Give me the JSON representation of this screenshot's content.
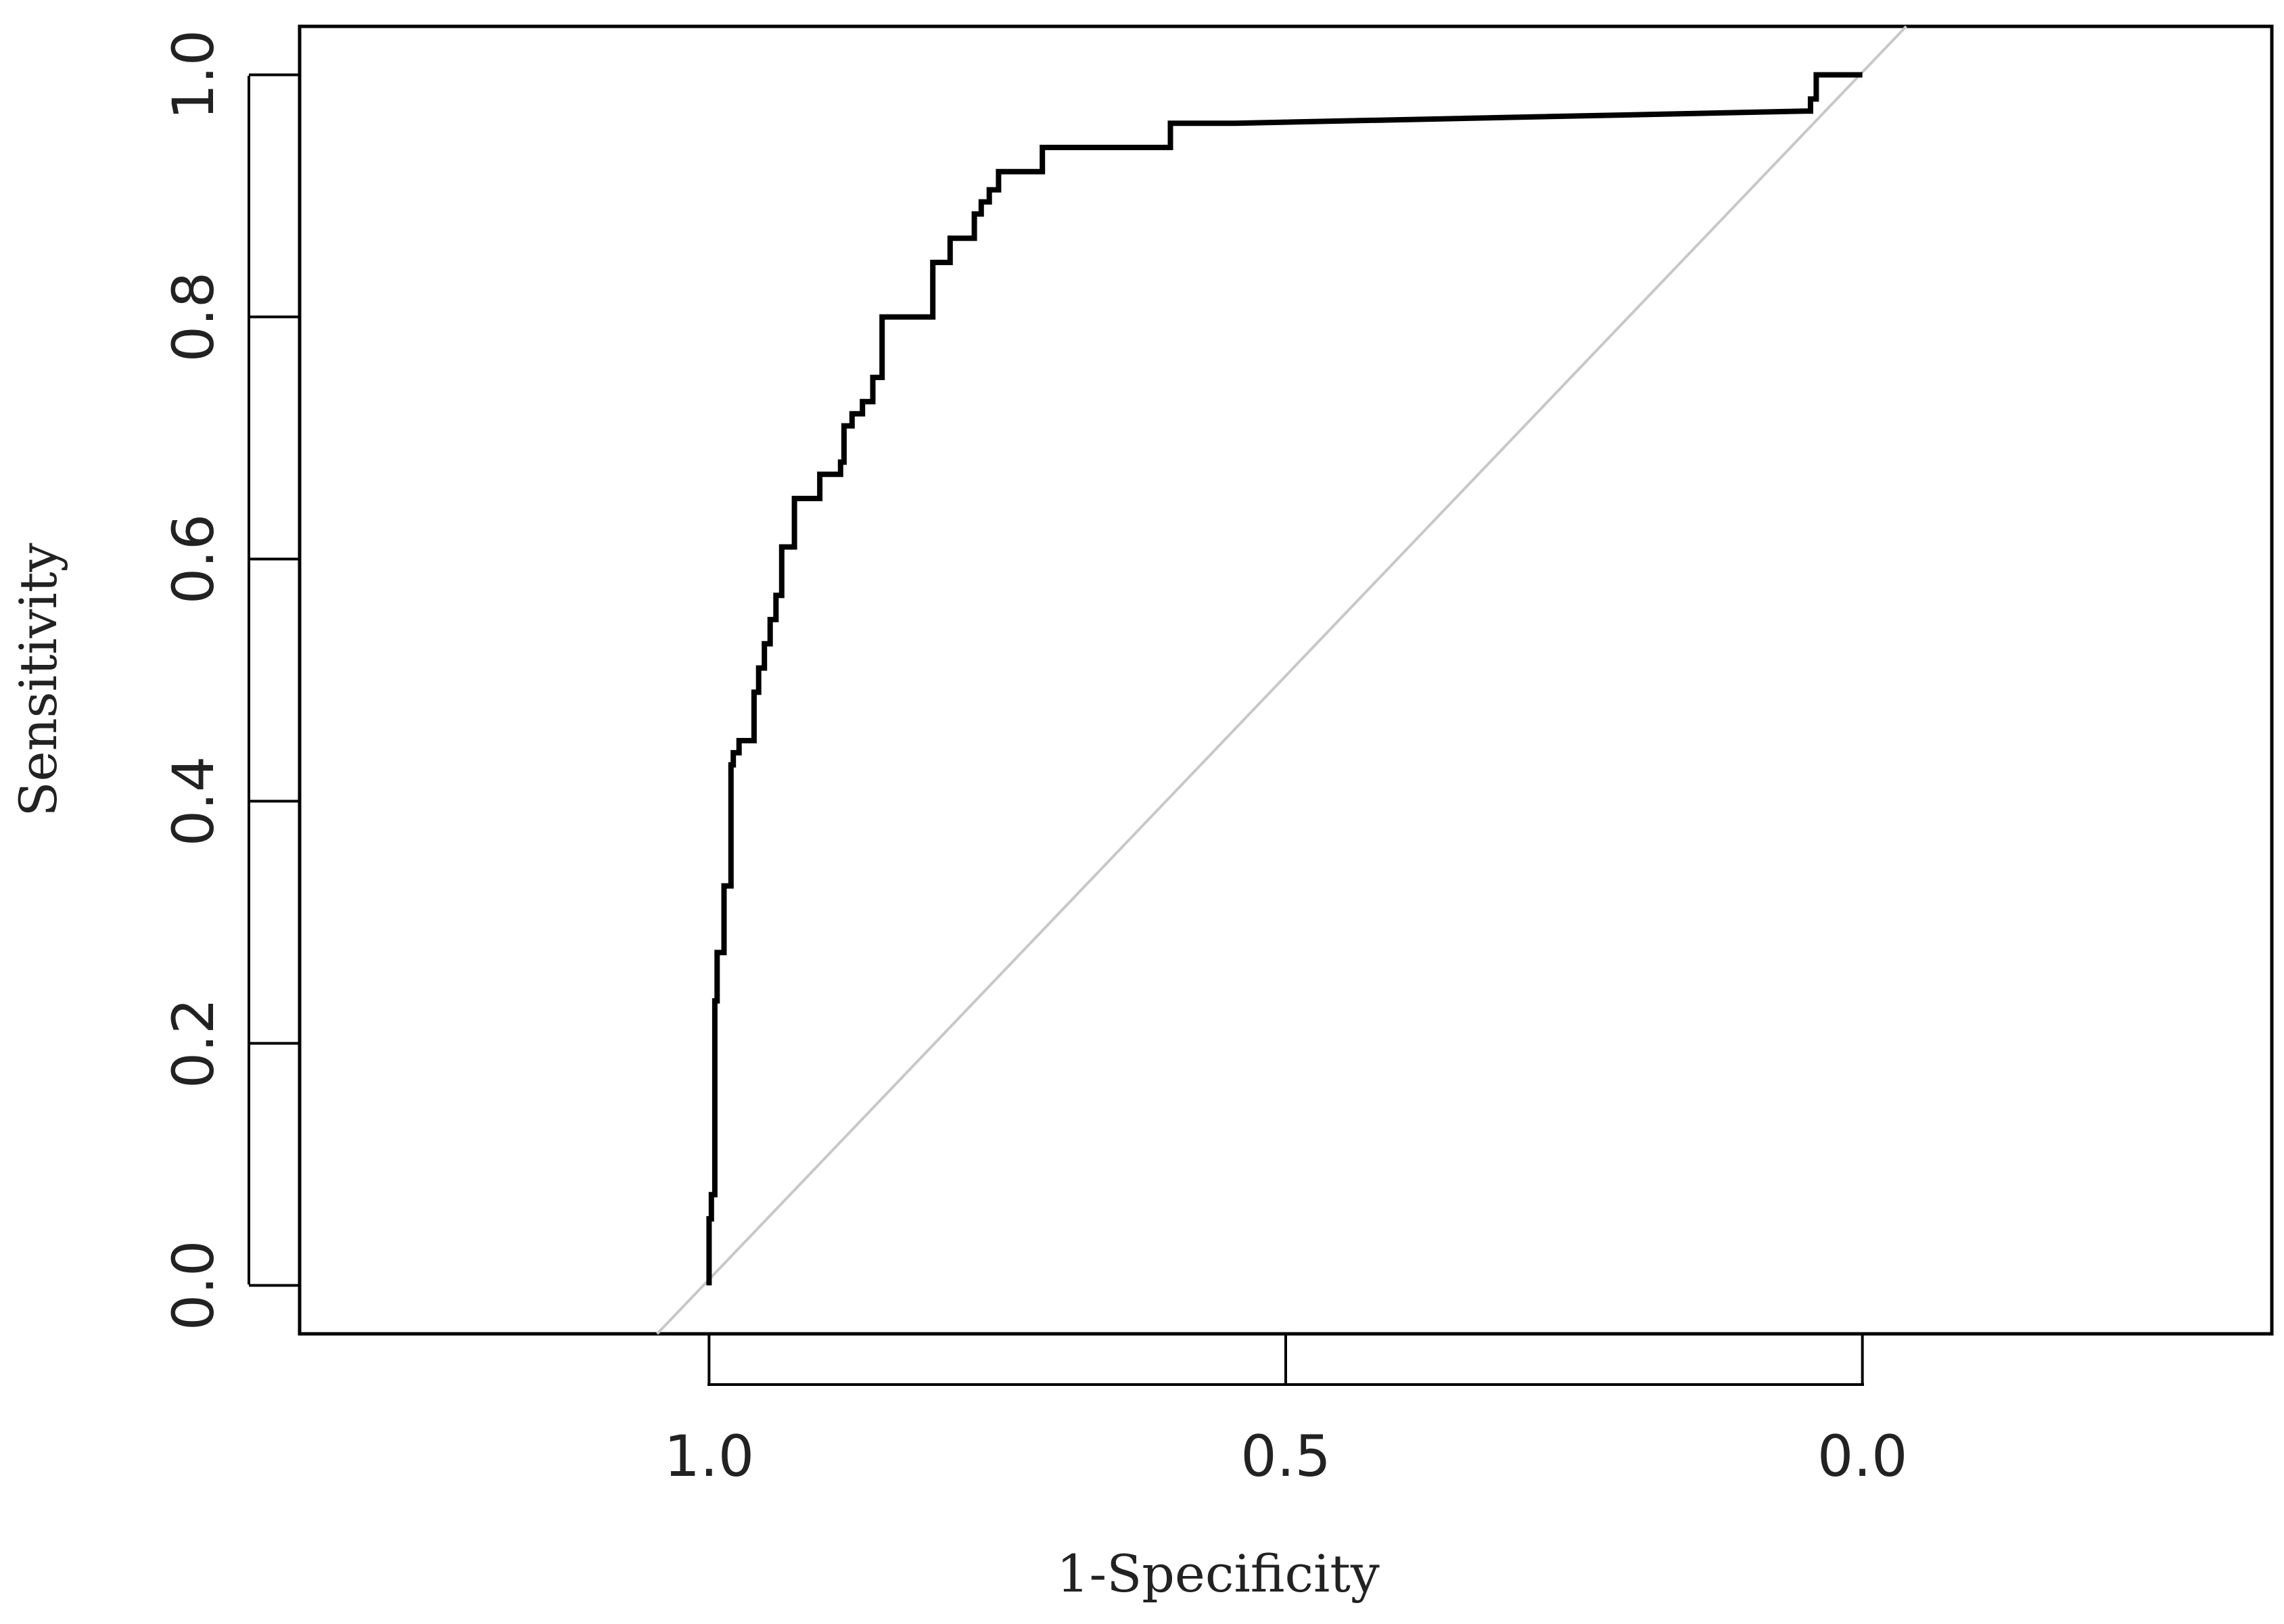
{
  "chart_data": {
    "type": "line",
    "title": "",
    "xlabel": "1-Specificity",
    "ylabel": "Sensitivity",
    "xlim": [
      1.355,
      -0.355
    ],
    "ylim": [
      -0.04,
      1.04
    ],
    "x_reversed": true,
    "grid": false,
    "legend": "none",
    "xticks": [
      {
        "value": 1.0,
        "label": "1.0"
      },
      {
        "value": 0.5,
        "label": "0.5"
      },
      {
        "value": 0.0,
        "label": "0.0"
      }
    ],
    "yticks": [
      {
        "value": 0.0,
        "label": "0.0"
      },
      {
        "value": 0.2,
        "label": "0.2"
      },
      {
        "value": 0.4,
        "label": "0.4"
      },
      {
        "value": 0.6,
        "label": "0.6"
      },
      {
        "value": 0.8,
        "label": "0.8"
      },
      {
        "value": 1.0,
        "label": "1.0"
      }
    ],
    "series": [
      {
        "color": "#000000",
        "x": [
          1.0,
          1.0,
          0.998,
          0.998,
          0.995,
          0.995,
          0.993,
          0.993,
          0.987,
          0.987,
          0.981,
          0.981,
          0.979,
          0.979,
          0.974,
          0.974,
          0.961,
          0.961,
          0.957,
          0.957,
          0.952,
          0.952,
          0.947,
          0.947,
          0.942,
          0.942,
          0.937,
          0.937,
          0.926,
          0.926,
          0.904,
          0.904,
          0.886,
          0.886,
          0.883,
          0.883,
          0.876,
          0.876,
          0.867,
          0.867,
          0.858,
          0.858,
          0.85,
          0.85,
          0.806,
          0.806,
          0.791,
          0.791,
          0.77,
          0.77,
          0.764,
          0.764,
          0.757,
          0.757,
          0.749,
          0.749,
          0.711,
          0.711,
          0.6,
          0.6,
          0.544,
          0.544,
          0.05,
          0.045,
          0.045,
          0.04,
          0.04,
          0.032,
          0.032,
          0.0
        ],
        "y": [
          0.0,
          0.055,
          0.055,
          0.075,
          0.075,
          0.235,
          0.235,
          0.275,
          0.275,
          0.33,
          0.33,
          0.43,
          0.43,
          0.44,
          0.44,
          0.45,
          0.45,
          0.49,
          0.49,
          0.51,
          0.51,
          0.53,
          0.53,
          0.55,
          0.55,
          0.57,
          0.57,
          0.61,
          0.61,
          0.65,
          0.65,
          0.67,
          0.67,
          0.68,
          0.68,
          0.71,
          0.71,
          0.72,
          0.72,
          0.73,
          0.73,
          0.75,
          0.75,
          0.8,
          0.8,
          0.845,
          0.845,
          0.865,
          0.865,
          0.885,
          0.885,
          0.895,
          0.895,
          0.905,
          0.905,
          0.92,
          0.92,
          0.94,
          0.94,
          0.96,
          0.96,
          0.96,
          0.97,
          0.97,
          0.98,
          0.98,
          1.0,
          1.0,
          1.0,
          1.0
        ]
      },
      {
        "color": "#c8c8c8",
        "x": [
          1.045,
          -0.038
        ],
        "y": [
          -0.04,
          1.04
        ]
      }
    ]
  }
}
